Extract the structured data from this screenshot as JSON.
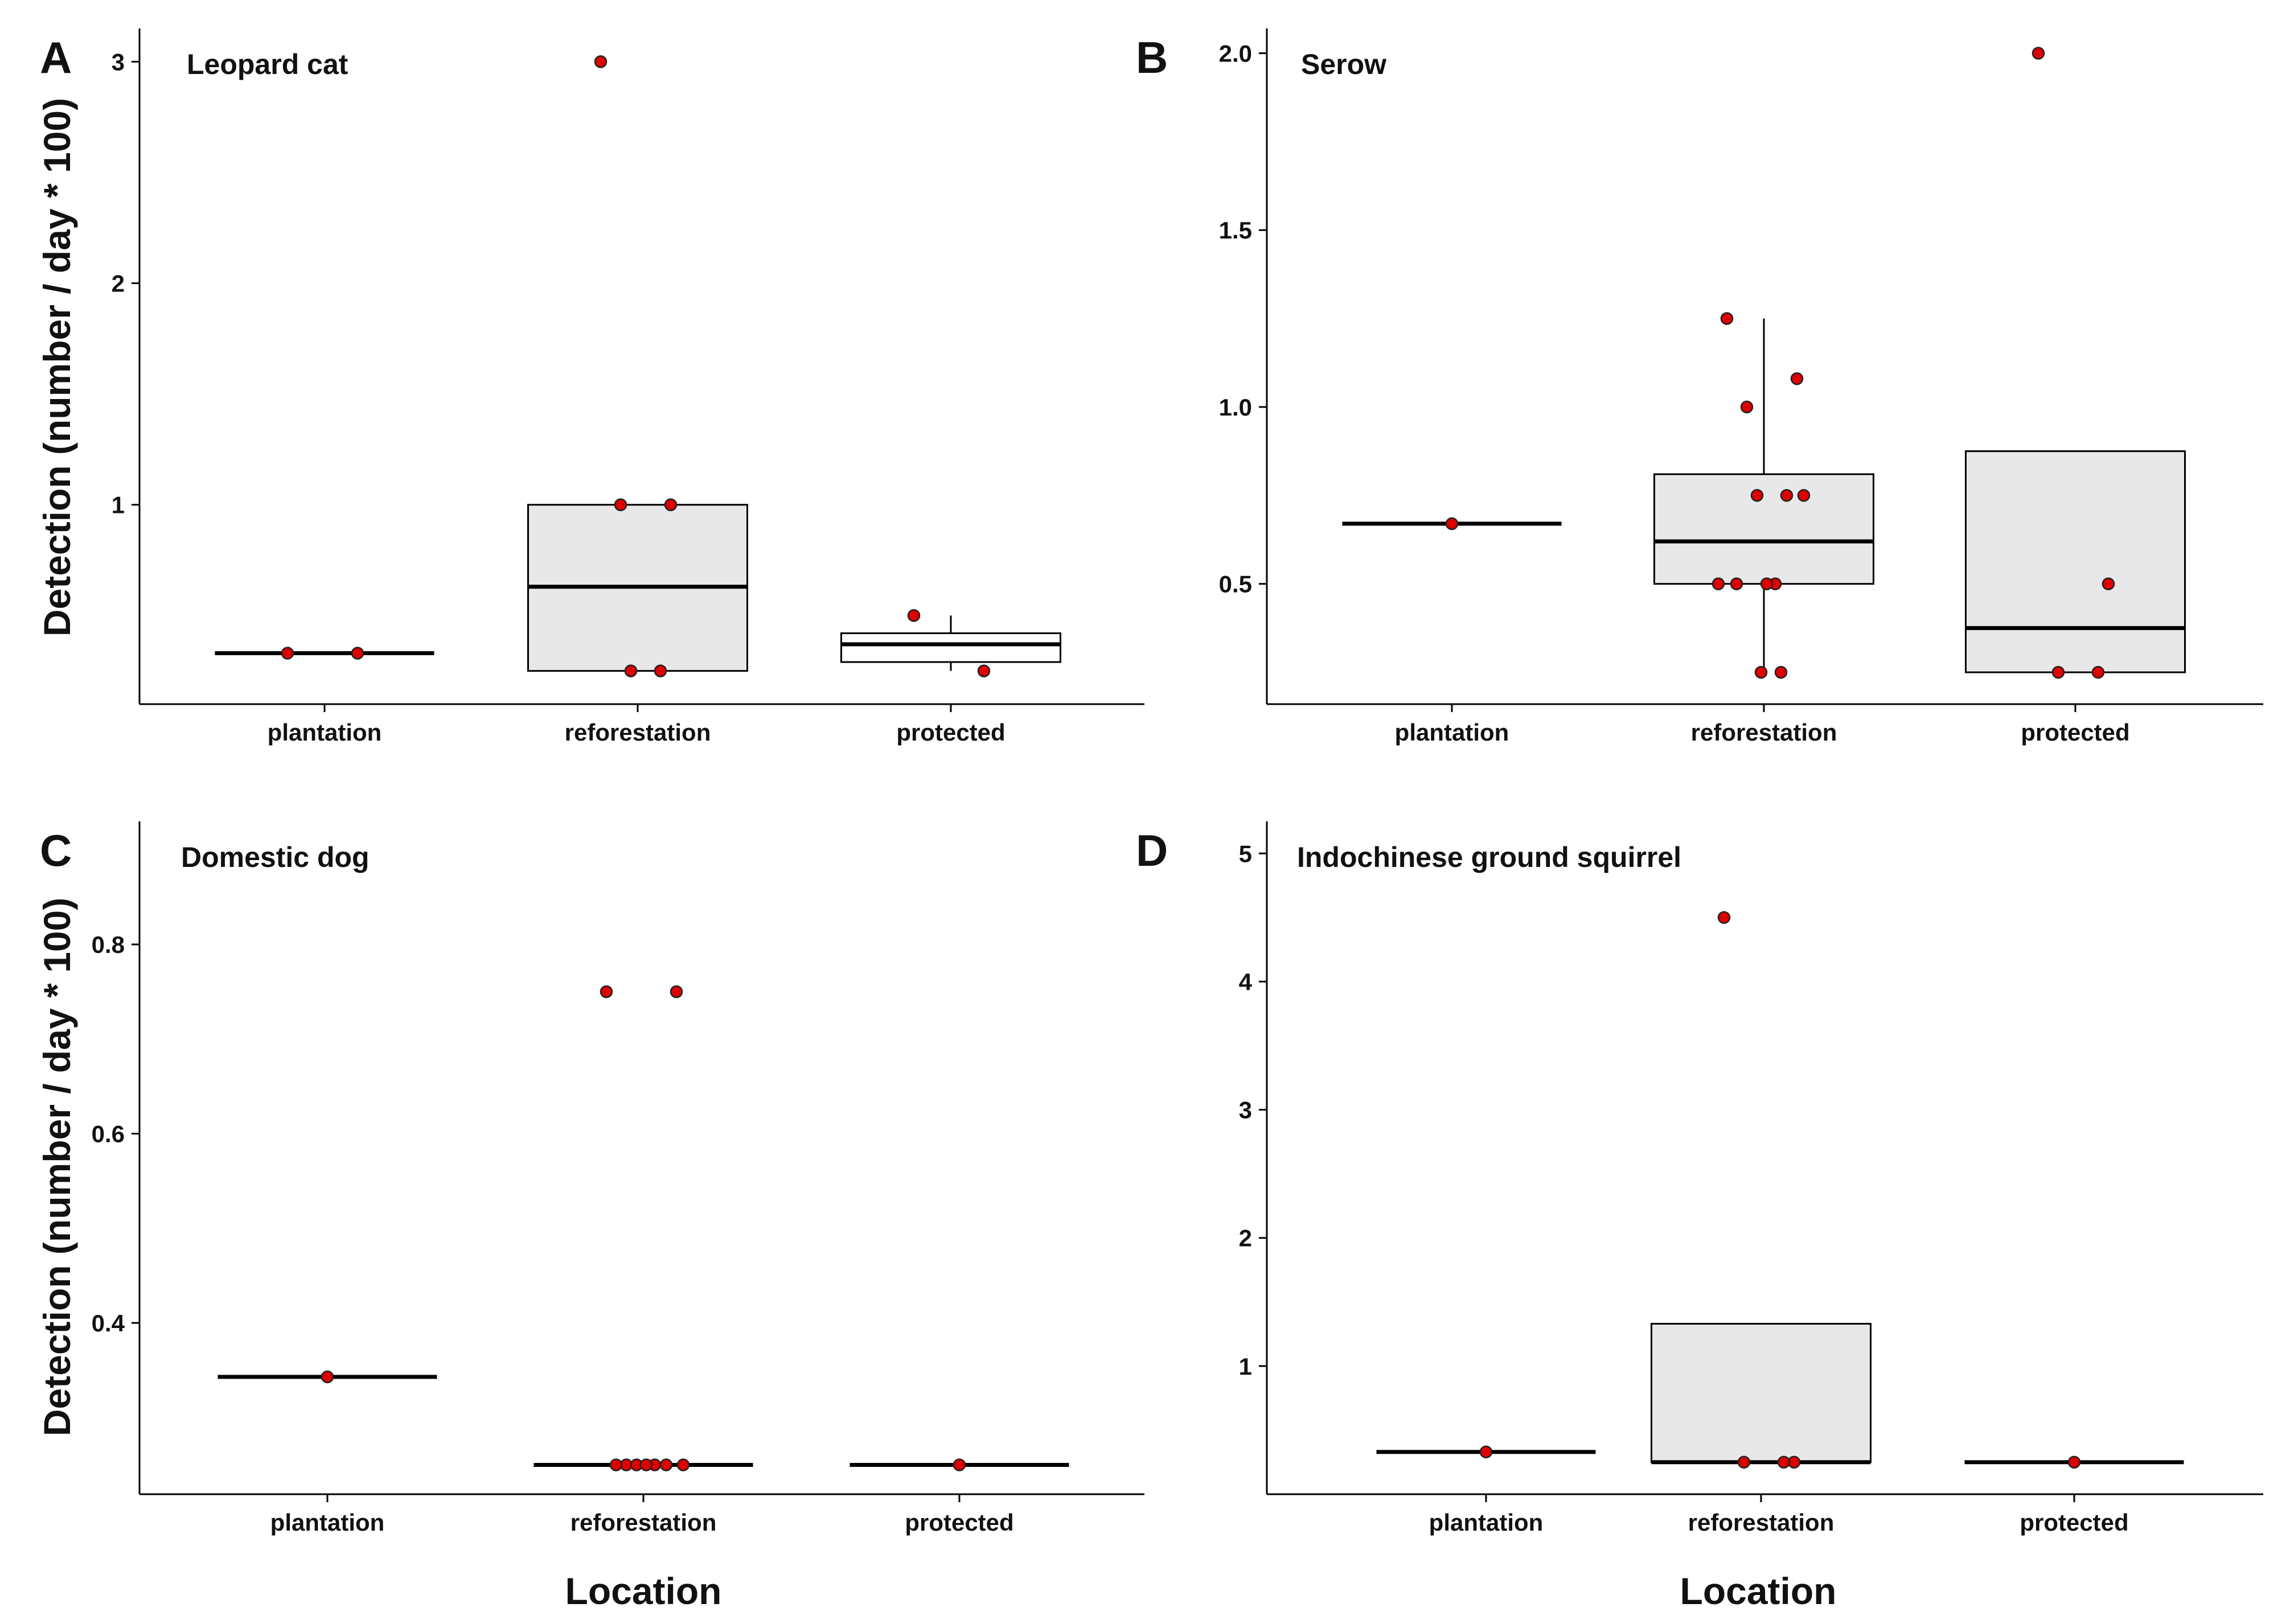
{
  "figure": {
    "xlabel": "Location",
    "ylabel": "Detection (number / day * 100)"
  },
  "chart_data": [
    {
      "type": "box",
      "panel": "A",
      "title": "Leopard cat",
      "xlabel": "Location",
      "ylabel": "Detection (number / day * 100)",
      "categories": [
        "plantation",
        "reforestation",
        "protected"
      ],
      "yticks": [
        1,
        2,
        3
      ],
      "ytick_labels": [
        "1",
        "2",
        "3"
      ],
      "ylim": [
        0.1,
        3.15
      ],
      "boxes": [
        {
          "category": "plantation",
          "q1": 0.33,
          "median": 0.33,
          "q3": 0.33,
          "lower": 0.33,
          "upper": 0.33
        },
        {
          "category": "reforestation",
          "q1": 0.25,
          "median": 0.63,
          "q3": 1.0,
          "lower": 0.25,
          "upper": 1.0
        },
        {
          "category": "protected",
          "q1": 0.29,
          "median": 0.37,
          "q3": 0.42,
          "lower": 0.25,
          "upper": 0.5
        }
      ],
      "points": [
        {
          "category": "plantation",
          "values": [
            0.33,
            0.33
          ]
        },
        {
          "category": "reforestation",
          "values": [
            3.0,
            1.0,
            1.0,
            0.25,
            0.25
          ]
        },
        {
          "category": "protected",
          "values": [
            0.5,
            0.25
          ]
        }
      ]
    },
    {
      "type": "box",
      "panel": "B",
      "title": "Serow",
      "xlabel": "Location",
      "ylabel": "Detection (number / day * 100)",
      "categories": [
        "plantation",
        "reforestation",
        "protected"
      ],
      "yticks": [
        0.5,
        1.0,
        1.5,
        2.0
      ],
      "ytick_labels": [
        "0.5",
        "1.0",
        "1.5",
        "2.0"
      ],
      "ylim": [
        0.16,
        2.07
      ],
      "boxes": [
        {
          "category": "plantation",
          "q1": 0.67,
          "median": 0.67,
          "q3": 0.67,
          "lower": 0.67,
          "upper": 0.67
        },
        {
          "category": "reforestation",
          "q1": 0.5,
          "median": 0.62,
          "q3": 0.81,
          "lower": 0.25,
          "upper": 1.25
        },
        {
          "category": "protected",
          "q1": 0.25,
          "median": 0.375,
          "q3": 0.875,
          "lower": 0.25,
          "upper": 0.875
        }
      ],
      "points": [
        {
          "category": "plantation",
          "values": [
            0.67
          ]
        },
        {
          "category": "reforestation",
          "values": [
            1.25,
            1.08,
            1.0,
            0.75,
            0.75,
            0.75,
            0.5,
            0.5,
            0.5,
            0.5,
            0.25,
            0.25
          ]
        },
        {
          "category": "protected",
          "values": [
            2.0,
            0.5,
            0.25,
            0.25
          ]
        }
      ]
    },
    {
      "type": "box",
      "panel": "C",
      "title": "Domestic dog",
      "xlabel": "Location",
      "ylabel": "Detection (number / day * 100)",
      "categories": [
        "plantation",
        "reforestation",
        "protected"
      ],
      "yticks": [
        0.4,
        0.6,
        0.8
      ],
      "ytick_labels": [
        "0.4",
        "0.6",
        "0.8"
      ],
      "ylim": [
        0.219,
        0.93
      ],
      "boxes": [
        {
          "category": "plantation",
          "q1": 0.343,
          "median": 0.343,
          "q3": 0.343,
          "lower": 0.343,
          "upper": 0.343
        },
        {
          "category": "reforestation",
          "q1": 0.25,
          "median": 0.25,
          "q3": 0.25,
          "lower": 0.25,
          "upper": 0.25
        },
        {
          "category": "protected",
          "q1": 0.25,
          "median": 0.25,
          "q3": 0.25,
          "lower": 0.25,
          "upper": 0.25
        }
      ],
      "points": [
        {
          "category": "plantation",
          "values": [
            0.343
          ]
        },
        {
          "category": "reforestation",
          "values": [
            0.75,
            0.75,
            0.25,
            0.25,
            0.25,
            0.25,
            0.25,
            0.25,
            0.25
          ]
        },
        {
          "category": "protected",
          "values": [
            0.25
          ]
        }
      ]
    },
    {
      "type": "box",
      "panel": "D",
      "title": "Indochinese ground squirrel",
      "xlabel": "Location",
      "ylabel": "Detection (number / day * 100)",
      "categories": [
        "plantation",
        "reforestation",
        "protected"
      ],
      "yticks": [
        1,
        2,
        3,
        4,
        5
      ],
      "ytick_labels": [
        "1",
        "2",
        "3",
        "4",
        "5"
      ],
      "ylim": [
        0.0,
        5.25
      ],
      "boxes": [
        {
          "category": "plantation",
          "q1": 0.33,
          "median": 0.33,
          "q3": 0.33,
          "lower": 0.33,
          "upper": 0.33
        },
        {
          "category": "reforestation",
          "q1": 0.25,
          "median": 0.25,
          "q3": 1.33,
          "lower": 0.25,
          "upper": 1.33
        },
        {
          "category": "protected",
          "q1": 0.25,
          "median": 0.25,
          "q3": 0.25,
          "lower": 0.25,
          "upper": 0.25
        }
      ],
      "points": [
        {
          "category": "plantation",
          "values": [
            0.33
          ]
        },
        {
          "category": "reforestation",
          "values": [
            4.5,
            0.25,
            0.25,
            0.25
          ]
        },
        {
          "category": "protected",
          "values": [
            0.25
          ]
        }
      ]
    }
  ],
  "colors": {
    "box_fill": "#e8e8e8",
    "box_fill_protected_A": "#ffffff",
    "point_fill": "#dd0000",
    "point_stroke": "#222222",
    "line": "#000000"
  }
}
